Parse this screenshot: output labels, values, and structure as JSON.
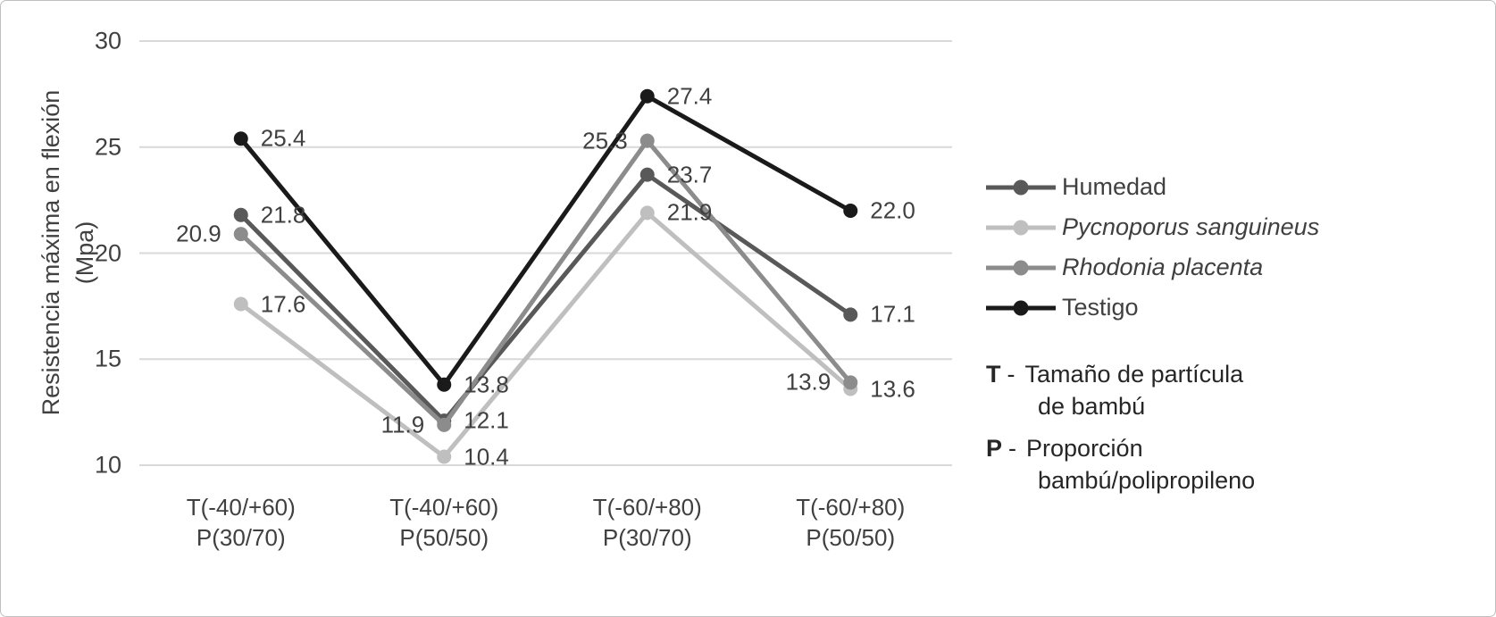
{
  "chart_data": {
    "type": "line",
    "title": "",
    "ylabel": {
      "line1": "Resistencia máxima en flexión",
      "line2": "(Mpa)"
    },
    "categories": [
      {
        "line1": "T(-40/+60)",
        "line2": "P(30/70)"
      },
      {
        "line1": "T(-40/+60)",
        "line2": "P(50/50)"
      },
      {
        "line1": "T(-60/+80)",
        "line2": "P(30/70)"
      },
      {
        "line1": "T(-60/+80)",
        "line2": "P(50/50)"
      }
    ],
    "series": [
      {
        "name": "Humedad",
        "italic": false,
        "color": "#595959",
        "label_side": "right",
        "values": [
          21.8,
          12.1,
          23.7,
          17.1
        ],
        "labels": [
          "21.8",
          "12.1",
          "23.7",
          "17.1"
        ]
      },
      {
        "name": "Pycnoporus sanguineus",
        "italic": true,
        "color": "#bfbfbf",
        "label_side": "right",
        "values": [
          17.6,
          10.4,
          21.9,
          13.6
        ],
        "labels": [
          "17.6",
          "10.4",
          "21.9",
          "13.6"
        ]
      },
      {
        "name": "Rhodonia placenta",
        "italic": true,
        "color": "#8c8c8c",
        "label_side": "left",
        "values": [
          20.9,
          11.9,
          25.3,
          13.9
        ],
        "labels": [
          "20.9",
          "11.9",
          "25.3",
          "13.9"
        ]
      },
      {
        "name": "Testigo",
        "italic": false,
        "color": "#1a1a1a",
        "label_side": "right",
        "values": [
          25.4,
          13.8,
          27.4,
          22.0
        ],
        "labels": [
          "25.4",
          "13.8",
          "27.4",
          "22.0"
        ]
      }
    ],
    "y_axis": {
      "min": 10,
      "max": 30,
      "step": 5,
      "ticks": [
        30,
        25,
        20,
        15,
        10
      ]
    },
    "grid": true,
    "legend_position": "right",
    "colors": {
      "gridline": "#d9d9d9",
      "axis_text": "#404040",
      "note_text": "#262626",
      "frame_border": "#bfbfbf",
      "background": "#ffffff"
    },
    "annotations": [
      {
        "key": "T",
        "sep": "-",
        "line1": "Tamaño de partícula",
        "line2": "de bambú"
      },
      {
        "key": "P",
        "sep": "-",
        "line1": "Proporción",
        "line2": "bambú/polipropileno"
      }
    ]
  }
}
